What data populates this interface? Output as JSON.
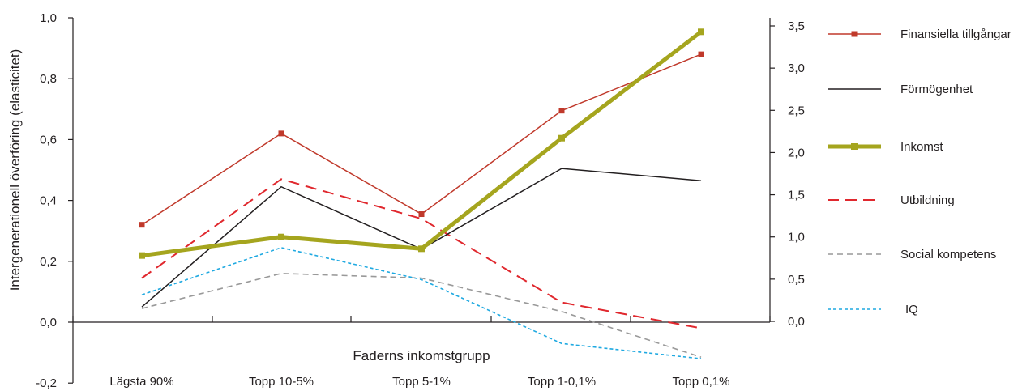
{
  "chart_data": {
    "type": "line",
    "ylabel": "Intergenerationell överföring (elasticitet)",
    "xlabel": "Faderns inkomstgrupp",
    "categories": [
      "Lägsta 90%",
      "Topp 10-5%",
      "Topp 5-1%",
      "Topp 1-0,1%",
      "Topp 0,1%"
    ],
    "y_left": {
      "ylim": [
        -0.2,
        1.0
      ],
      "ticks": [
        1.0,
        0.8,
        0.6,
        0.4,
        0.2,
        0.0,
        -0.2
      ],
      "tick_labels": [
        "1,0",
        "0,8",
        "0,6",
        "0,4",
        "0,2",
        "0,0",
        "-0,2"
      ]
    },
    "y_right": {
      "ylim": [
        0.0,
        3.5
      ],
      "ticks": [
        3.5,
        3.0,
        2.5,
        2.0,
        1.5,
        1.0,
        0.5,
        0.0
      ],
      "tick_labels": [
        "3,5",
        "3,0",
        "2,5",
        "2,0",
        "1,5",
        "1,0",
        "0,5",
        "0,0"
      ]
    },
    "grid": false,
    "legend_position": "right",
    "series": [
      {
        "name": "Finansiella tillgångar",
        "axis": "left",
        "color": "#c0392b",
        "style": "solid-marker",
        "values": [
          0.32,
          0.62,
          0.355,
          0.695,
          0.88
        ]
      },
      {
        "name": "Förmögenhet",
        "axis": "left",
        "color": "#231f20",
        "style": "solid",
        "values": [
          0.05,
          0.445,
          0.24,
          0.505,
          0.465
        ]
      },
      {
        "name": "Inkomst",
        "axis": "right",
        "color": "#a5a51e",
        "style": "thick-marker",
        "values": [
          0.78,
          1.0,
          0.86,
          2.17,
          3.43
        ]
      },
      {
        "name": "Utbildning",
        "axis": "left",
        "color": "#e0282e",
        "style": "dashed",
        "values": [
          0.145,
          0.47,
          0.34,
          0.065,
          -0.02
        ]
      },
      {
        "name": "Social kompetens",
        "axis": "left",
        "color": "#999999",
        "style": "dashed-gray",
        "values": [
          0.045,
          0.16,
          0.145,
          0.035,
          -0.115
        ]
      },
      {
        "name": "IQ",
        "axis": "left",
        "color": "#1fa9e1",
        "style": "dotted",
        "values": [
          0.09,
          0.245,
          0.14,
          -0.07,
          -0.12
        ]
      }
    ]
  }
}
